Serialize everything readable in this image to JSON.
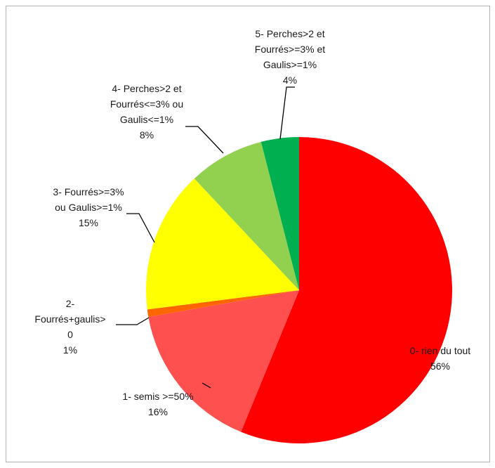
{
  "chart_data": {
    "type": "pie",
    "title": "",
    "start_angle_deg": 0,
    "direction": "clockwise",
    "slices": [
      {
        "label": [
          "0- rien du tout"
        ],
        "pct_text": "56%",
        "value": 56.2,
        "color": "#ff0000"
      },
      {
        "label": [
          "1- semis >=50%"
        ],
        "pct_text": "16%",
        "value": 16.0,
        "color": "#ff5050"
      },
      {
        "label": [
          "2-",
          "Fourrés+gaulis>",
          "0"
        ],
        "pct_text": "1%",
        "value": 0.8,
        "color": "#ff6600"
      },
      {
        "label": [
          "3- Fourrés>=3%",
          "ou Gaulis>=1%"
        ],
        "pct_text": "15%",
        "value": 15.0,
        "color": "#ffff00"
      },
      {
        "label": [
          "4- Perches>2 et",
          "Fourrés<=3% ou",
          "Gaulis<=1%"
        ],
        "pct_text": "8%",
        "value": 8.0,
        "color": "#92d050"
      },
      {
        "label": [
          "5- Perches>2 et",
          "Fourrés>=3% et",
          "Gaulis>=1%"
        ],
        "pct_text": "4%",
        "value": 4.0,
        "color": "#00b050"
      }
    ]
  }
}
